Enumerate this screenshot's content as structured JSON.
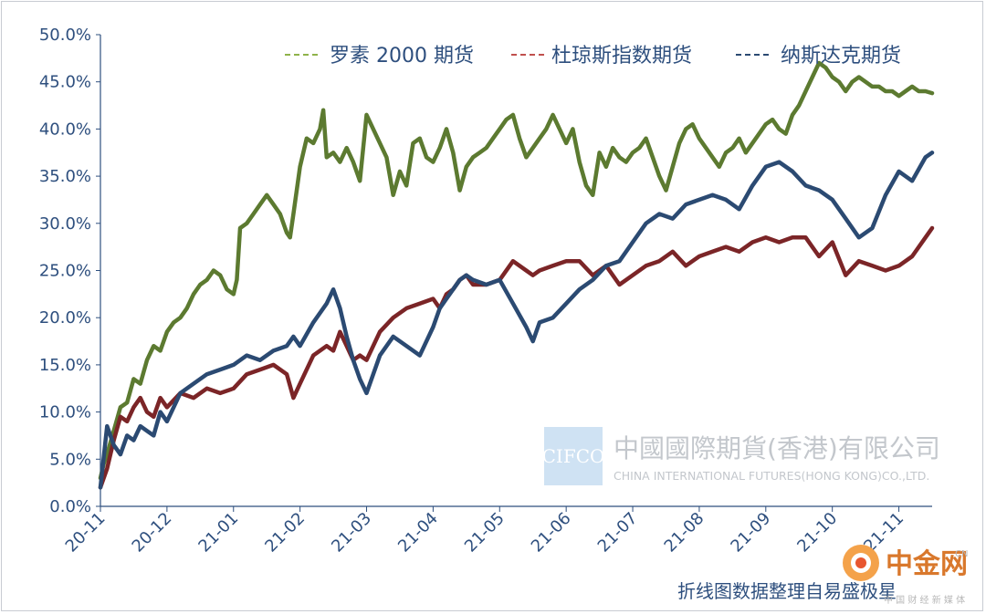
{
  "chart_data": {
    "type": "line",
    "title": "",
    "xlabel": "",
    "ylabel": "",
    "ylim": [
      0,
      50
    ],
    "y_ticks": [
      "0.0%",
      "5.0%",
      "10.0%",
      "15.0%",
      "20.0%",
      "25.0%",
      "30.0%",
      "35.0%",
      "40.0%",
      "45.0%",
      "50.0%"
    ],
    "x_ticks": [
      "20-11",
      "20-12",
      "21-01",
      "21-02",
      "21-03",
      "21-04",
      "21-05",
      "21-06",
      "21-07",
      "21-08",
      "21-09",
      "21-10",
      "21-11"
    ],
    "x_range_months": [
      0,
      12.5
    ],
    "legend_position": "top-right",
    "series": [
      {
        "name": "罗素 2000 期货",
        "color": "#5c7a30",
        "x": [
          0,
          0.05,
          0.12,
          0.2,
          0.3,
          0.4,
          0.5,
          0.6,
          0.7,
          0.8,
          0.9,
          1.0,
          1.1,
          1.2,
          1.3,
          1.4,
          1.5,
          1.6,
          1.7,
          1.8,
          1.9,
          2.0,
          2.05,
          2.1,
          2.2,
          2.3,
          2.4,
          2.5,
          2.6,
          2.7,
          2.8,
          2.85,
          2.9,
          3.0,
          3.1,
          3.2,
          3.3,
          3.35,
          3.4,
          3.5,
          3.6,
          3.7,
          3.8,
          3.9,
          4.0,
          4.1,
          4.2,
          4.3,
          4.4,
          4.5,
          4.6,
          4.7,
          4.8,
          4.9,
          5.0,
          5.1,
          5.2,
          5.3,
          5.4,
          5.5,
          5.6,
          5.7,
          5.8,
          5.9,
          6.0,
          6.1,
          6.2,
          6.3,
          6.4,
          6.5,
          6.6,
          6.7,
          6.8,
          6.9,
          7.0,
          7.1,
          7.2,
          7.3,
          7.4,
          7.5,
          7.6,
          7.7,
          7.8,
          7.9,
          8.0,
          8.1,
          8.2,
          8.3,
          8.4,
          8.5,
          8.6,
          8.7,
          8.8,
          8.9,
          9.0,
          9.1,
          9.2,
          9.3,
          9.4,
          9.5,
          9.6,
          9.7,
          9.8,
          9.9,
          10.0,
          10.1,
          10.2,
          10.3,
          10.4,
          10.5,
          10.6,
          10.7,
          10.8,
          10.9,
          11.0,
          11.1,
          11.2,
          11.3,
          11.4,
          11.5,
          11.6,
          11.7,
          11.8,
          11.9,
          12.0,
          12.1,
          12.2,
          12.3,
          12.4,
          12.5
        ],
        "values": [
          3.0,
          4.5,
          6.0,
          8.0,
          10.5,
          11.0,
          13.5,
          13.0,
          15.5,
          17.0,
          16.5,
          18.5,
          19.5,
          20.0,
          21.0,
          22.5,
          23.5,
          24.0,
          25.0,
          24.5,
          23.0,
          22.5,
          24.0,
          29.5,
          30.0,
          31.0,
          32.0,
          33.0,
          32.0,
          31.0,
          29.0,
          28.5,
          31.0,
          36.0,
          39.0,
          38.5,
          40.0,
          42.0,
          37.0,
          37.5,
          36.5,
          38.0,
          36.5,
          34.5,
          41.5,
          40.0,
          38.5,
          37.0,
          33.0,
          35.5,
          34.0,
          38.5,
          39.0,
          37.0,
          36.5,
          38.0,
          40.0,
          37.5,
          33.5,
          36.0,
          37.0,
          37.5,
          38.0,
          39.0,
          40.0,
          41.0,
          41.5,
          39.0,
          37.0,
          38.0,
          39.0,
          40.0,
          41.5,
          40.0,
          38.5,
          40.0,
          36.5,
          34.0,
          33.0,
          37.5,
          36.0,
          38.0,
          37.0,
          36.5,
          37.5,
          38.0,
          39.0,
          37.0,
          35.0,
          33.5,
          36.0,
          38.5,
          40.0,
          40.5,
          39.0,
          38.0,
          37.0,
          36.0,
          37.5,
          38.0,
          39.0,
          37.5,
          38.5,
          39.5,
          40.5,
          41.0,
          40.0,
          39.5,
          41.5,
          42.5,
          44.0,
          45.5,
          47.0,
          46.5,
          45.5,
          45.0,
          44.0,
          45.0,
          45.5,
          45.0,
          44.5,
          44.5,
          44.0,
          44.0,
          43.5,
          44.0,
          44.5,
          44.0,
          44.0,
          43.8
        ],
        "values_note": "approximate"
      },
      {
        "name": "杜琼斯指数期货",
        "color": "#7b2527",
        "x": [
          0,
          0.1,
          0.2,
          0.3,
          0.4,
          0.5,
          0.6,
          0.7,
          0.8,
          0.9,
          1.0,
          1.2,
          1.4,
          1.6,
          1.8,
          2.0,
          2.2,
          2.4,
          2.6,
          2.8,
          2.9,
          3.0,
          3.2,
          3.4,
          3.5,
          3.6,
          3.7,
          3.8,
          3.9,
          4.0,
          4.2,
          4.4,
          4.6,
          4.8,
          5.0,
          5.1,
          5.2,
          5.3,
          5.4,
          5.5,
          5.6,
          5.8,
          6.0,
          6.2,
          6.4,
          6.5,
          6.6,
          6.8,
          7.0,
          7.2,
          7.4,
          7.6,
          7.8,
          8.0,
          8.2,
          8.4,
          8.6,
          8.8,
          9.0,
          9.2,
          9.4,
          9.6,
          9.8,
          10.0,
          10.2,
          10.4,
          10.6,
          10.8,
          11.0,
          11.2,
          11.4,
          11.6,
          11.8,
          12.0,
          12.2,
          12.4,
          12.5
        ],
        "values": [
          2.0,
          4.0,
          7.0,
          9.5,
          9.0,
          10.5,
          11.5,
          10.0,
          9.5,
          11.5,
          10.5,
          12.0,
          11.5,
          12.5,
          12.0,
          12.5,
          14.0,
          14.5,
          15.0,
          14.0,
          11.5,
          13.0,
          16.0,
          17.0,
          16.5,
          18.5,
          17.0,
          15.5,
          16.0,
          15.5,
          18.5,
          20.0,
          21.0,
          21.5,
          22.0,
          21.0,
          22.5,
          23.0,
          24.0,
          24.5,
          23.5,
          23.5,
          24.0,
          26.0,
          25.0,
          24.5,
          25.0,
          25.5,
          26.0,
          26.0,
          24.5,
          25.5,
          23.5,
          24.5,
          25.5,
          26.0,
          27.0,
          25.5,
          26.5,
          27.0,
          27.5,
          27.0,
          28.0,
          28.5,
          28.0,
          28.5,
          28.5,
          26.5,
          28.0,
          24.5,
          26.0,
          25.5,
          25.0,
          25.5,
          26.5,
          28.5,
          29.5
        ],
        "values_note": "approximate"
      },
      {
        "name": "纳斯达克期货",
        "color": "#2b4a72",
        "x": [
          0,
          0.1,
          0.2,
          0.3,
          0.4,
          0.5,
          0.6,
          0.7,
          0.8,
          0.9,
          1.0,
          1.2,
          1.4,
          1.6,
          1.8,
          2.0,
          2.2,
          2.4,
          2.6,
          2.8,
          2.9,
          3.0,
          3.2,
          3.4,
          3.5,
          3.6,
          3.7,
          3.8,
          3.9,
          4.0,
          4.2,
          4.4,
          4.6,
          4.8,
          5.0,
          5.1,
          5.2,
          5.3,
          5.4,
          5.5,
          5.6,
          5.8,
          6.0,
          6.2,
          6.4,
          6.5,
          6.6,
          6.8,
          7.0,
          7.2,
          7.4,
          7.6,
          7.8,
          8.0,
          8.2,
          8.4,
          8.6,
          8.8,
          9.0,
          9.2,
          9.4,
          9.6,
          9.8,
          10.0,
          10.2,
          10.4,
          10.6,
          10.8,
          11.0,
          11.2,
          11.4,
          11.6,
          11.8,
          12.0,
          12.2,
          12.4,
          12.5
        ],
        "values": [
          2.0,
          8.5,
          6.5,
          5.5,
          7.5,
          7.0,
          8.5,
          8.0,
          7.5,
          10.0,
          9.0,
          12.0,
          13.0,
          14.0,
          14.5,
          15.0,
          16.0,
          15.5,
          16.5,
          17.0,
          18.0,
          17.0,
          19.5,
          21.5,
          23.0,
          21.0,
          18.0,
          15.5,
          13.5,
          12.0,
          16.0,
          18.0,
          17.0,
          16.0,
          19.0,
          21.0,
          22.0,
          23.0,
          24.0,
          24.5,
          24.0,
          23.5,
          24.0,
          21.5,
          19.0,
          17.5,
          19.5,
          20.0,
          21.5,
          23.0,
          24.0,
          25.5,
          26.0,
          28.0,
          30.0,
          31.0,
          30.5,
          32.0,
          32.5,
          33.0,
          32.5,
          31.5,
          34.0,
          36.0,
          36.5,
          35.5,
          34.0,
          33.5,
          32.5,
          30.5,
          28.5,
          29.5,
          33.0,
          35.5,
          34.5,
          37.0,
          37.5
        ],
        "values_note": "approximate"
      }
    ]
  },
  "watermark": {
    "box_text": "CIFCO",
    "company_cn": "中國國際期貨(香港)有限公司",
    "company_en": "CHINA INTERNATIONAL FUTURES(HONG KONG)CO.,LTD."
  },
  "caption": "折线图数据整理自易盛极星",
  "site_logo": {
    "name": "中金网",
    "domain": "CN",
    "slogan": "中 国 财 经 新 媒 体"
  },
  "colors": {
    "axis": "#2e4f7e",
    "grid": "#d7dbe0",
    "watermark_box": "#cfe2f3"
  }
}
